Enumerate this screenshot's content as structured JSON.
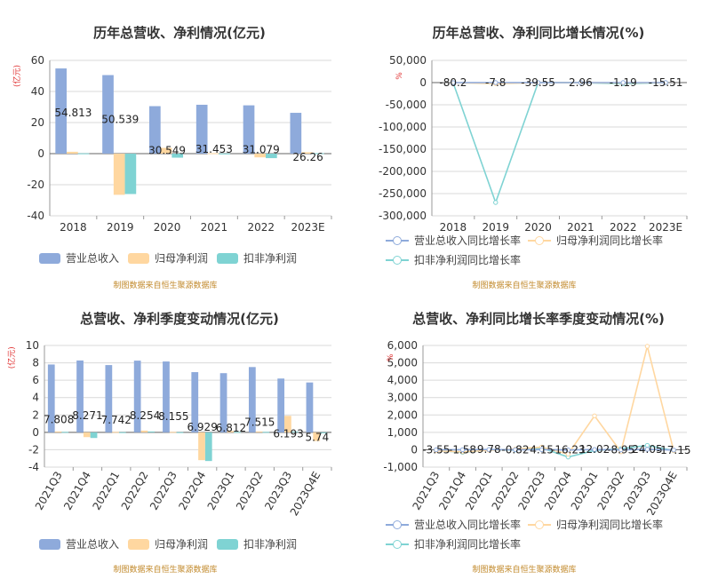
{
  "colors": {
    "rev": "#8eaadb",
    "np": "#ffd7a0",
    "dnp": "#7fd3d3",
    "src": "#c28a2c",
    "unit": "#e03030"
  },
  "source_note": "制图数据来自恒生聚源数据库",
  "chart_data": [
    {
      "type": "bar",
      "title": "历年总营收、净利情况(亿元)",
      "ylabel": "(亿元)",
      "categories": [
        "2018",
        "2019",
        "2020",
        "2021",
        "2022",
        "2023E"
      ],
      "series": [
        {
          "name": "营业总收入",
          "values": [
            54.813,
            50.539,
            30.549,
            31.453,
            31.079,
            26.26
          ],
          "labels": [
            "54.813",
            "50.539",
            "30.549",
            "31.453",
            "31.079",
            "26.26"
          ]
        },
        {
          "name": "归母净利润",
          "values": [
            1.2,
            -26.5,
            3.7,
            0.3,
            -2.4,
            0.9
          ]
        },
        {
          "name": "扣非净利润",
          "values": [
            0.2,
            -26.0,
            -2.6,
            0.1,
            -2.9,
            0.3
          ]
        }
      ],
      "ylim": [
        -40,
        60
      ],
      "yticks": [
        "60",
        "40",
        "20",
        "0",
        "-20",
        "-40"
      ]
    },
    {
      "type": "line",
      "title": "历年总营收、净利同比增长情况(%)",
      "ylabel": "%",
      "categories": [
        "2018",
        "2019",
        "2020",
        "2021",
        "2022",
        "2023E"
      ],
      "series": [
        {
          "name": "营业总收入同比增长率",
          "values": [
            -80.2,
            -7.8,
            -39.55,
            2.96,
            -1.19,
            -15.51
          ],
          "labels": [
            "-80.2",
            "-7.8",
            "-39.55",
            "2.96",
            "-1.19",
            "-15.51"
          ]
        },
        {
          "name": "归母净利润同比增长率",
          "values": [
            -200,
            -2300,
            -113,
            -92,
            -900,
            -138
          ]
        },
        {
          "name": "扣非净利润同比增长率",
          "values": [
            -300,
            -270000,
            -110,
            -104,
            -2700,
            -110
          ]
        }
      ],
      "ylim": [
        -300000,
        50000
      ],
      "yticks": [
        "50,000",
        "0",
        "-50,000",
        "-100,000",
        "-150,000",
        "-200,000",
        "-250,000",
        "-300,000"
      ]
    },
    {
      "type": "bar",
      "title": "总营收、净利季度变动情况(亿元)",
      "ylabel": "(亿元)",
      "categories": [
        "2021Q3",
        "2021Q4",
        "2022Q1",
        "2022Q2",
        "2022Q3",
        "2022Q4",
        "2023Q1",
        "2023Q2",
        "2023Q3",
        "2023Q4E"
      ],
      "series": [
        {
          "name": "营业总收入",
          "values": [
            7.808,
            8.271,
            7.742,
            8.254,
            8.155,
            6.929,
            6.812,
            7.515,
            6.193,
            5.74
          ],
          "labels": [
            "7.808",
            "8.271",
            "7.742",
            "8.254",
            "8.155",
            "6.929",
            "6.812",
            "7.515",
            "6.193",
            "5.74"
          ]
        },
        {
          "name": "归母净利润",
          "values": [
            0.1,
            -0.55,
            0.05,
            0.2,
            0.05,
            -3.2,
            0.15,
            0.1,
            1.9,
            -1.0
          ]
        },
        {
          "name": "扣非净利润",
          "values": [
            0.05,
            -0.65,
            0.02,
            0.1,
            0.02,
            -3.3,
            0.05,
            0.05,
            0.1,
            -0.1
          ]
        }
      ],
      "ylim": [
        -4,
        10
      ],
      "yticks": [
        "10",
        "8",
        "6",
        "4",
        "2",
        "0",
        "-2",
        "-4"
      ]
    },
    {
      "type": "line",
      "title": "总营收、净利同比增长率季度变动情况(%)",
      "ylabel": "%",
      "categories": [
        "2021Q3",
        "2021Q4",
        "2022Q1",
        "2022Q2",
        "2022Q3",
        "2022Q4",
        "2023Q1",
        "2023Q2",
        "2023Q3",
        "2023Q4E"
      ],
      "series": [
        {
          "name": "营业总收入同比增长率",
          "values": [
            -3.55,
            -1.58,
            9.78,
            -0.82,
            4.15,
            -16.23,
            12.02,
            -8.95,
            24.05,
            -17.15
          ],
          "labels": [
            "-3.55",
            "-1.58",
            "9.78",
            "-0.82",
            "4.15",
            "-16.23",
            "12.02",
            "-8.95",
            "24.05",
            "-17.15"
          ]
        },
        {
          "name": "归母净利润同比增长率",
          "values": [
            -60,
            -120,
            -30,
            40,
            150,
            -250,
            1950,
            -120,
            5950,
            -60
          ]
        },
        {
          "name": "扣非净利润同比增长率",
          "values": [
            -40,
            -150,
            -20,
            -10,
            100,
            -420,
            -40,
            60,
            250,
            -50
          ]
        }
      ],
      "ylim": [
        -1000,
        6000
      ],
      "yticks": [
        "6,000",
        "5,000",
        "4,000",
        "3,000",
        "2,000",
        "1,000",
        "0",
        "-1,000"
      ]
    }
  ]
}
